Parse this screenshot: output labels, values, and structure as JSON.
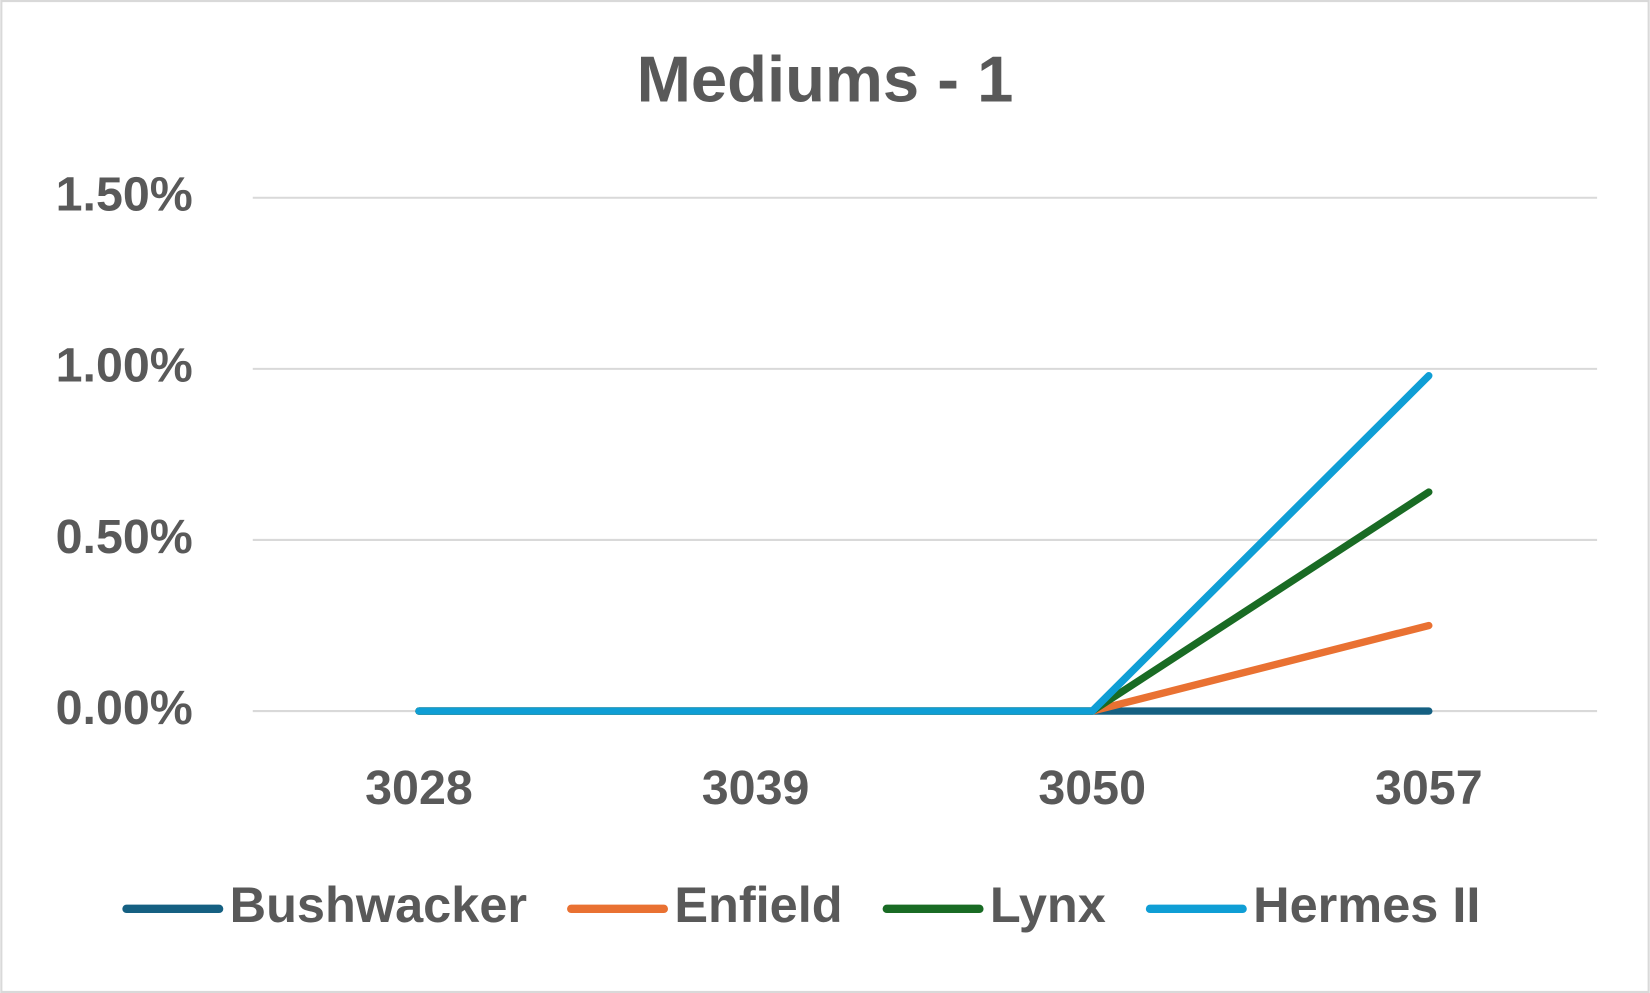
{
  "chart_data": {
    "type": "line",
    "title": "Mediums - 1",
    "categories": [
      "3028",
      "3039",
      "3050",
      "3057"
    ],
    "series": [
      {
        "name": "Bushwacker",
        "color": "#156082",
        "values": [
          0,
          0,
          0,
          0
        ]
      },
      {
        "name": "Enfield",
        "color": "#e97132",
        "values": [
          0,
          0,
          0,
          0.25
        ]
      },
      {
        "name": "Lynx",
        "color": "#196b24",
        "values": [
          0,
          0,
          0,
          0.64
        ]
      },
      {
        "name": "Hermes II",
        "color": "#0f9ed5",
        "values": [
          0,
          0,
          0,
          0.98
        ]
      }
    ],
    "ylim": [
      0,
      1.5
    ],
    "yticks": [
      {
        "value": 0,
        "label": "0.00%"
      },
      {
        "value": 0.5,
        "label": "0.50%"
      },
      {
        "value": 1,
        "label": "1.00%"
      },
      {
        "value": 1.5,
        "label": "1.50%"
      }
    ],
    "grid": true,
    "legend": "bottom"
  }
}
